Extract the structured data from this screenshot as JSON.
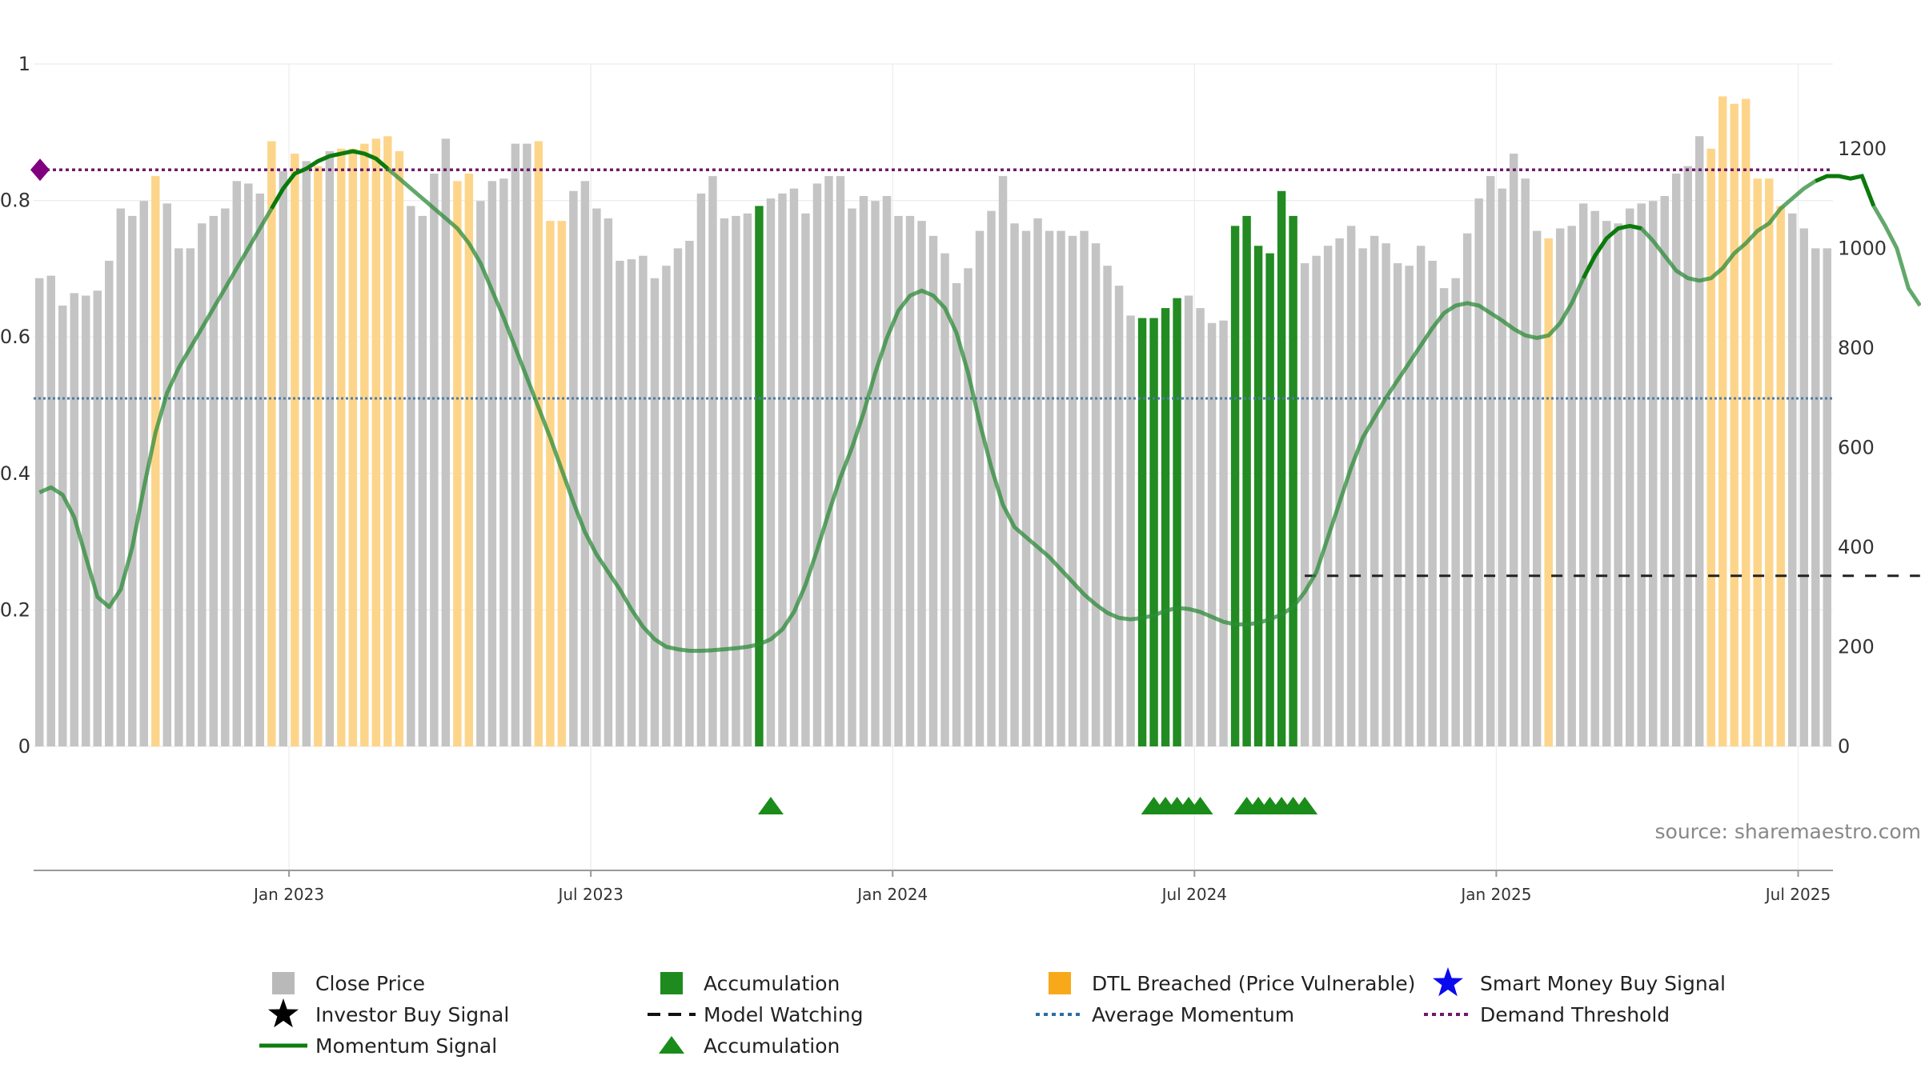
{
  "chart_data": {
    "type": "bar",
    "source": "source: sharemaestro.com",
    "x_ticks": [
      {
        "label": "Jan 2023",
        "week": 22
      },
      {
        "label": "Jul 2023",
        "week": 48
      },
      {
        "label": "Jan 2024",
        "week": 74
      },
      {
        "label": "Jul 2024",
        "week": 100
      },
      {
        "label": "Jan 2025",
        "week": 126
      },
      {
        "label": "Jul 2025",
        "week": 152
      }
    ],
    "left_axis": {
      "ylim": [
        0,
        1
      ],
      "ticks": [
        "0",
        "0.2",
        "0.4",
        "0.6",
        "0.8",
        "1"
      ],
      "tick_values": [
        0,
        0.2,
        0.4,
        0.6,
        0.8,
        1
      ]
    },
    "right_axis": {
      "ylim": [
        0,
        1370
      ],
      "ticks": [
        "0",
        "200",
        "400",
        "600",
        "800",
        "1000",
        "1200"
      ],
      "tick_values": [
        0,
        200,
        400,
        600,
        800,
        1000,
        1200
      ]
    },
    "close_price": [
      940,
      945,
      885,
      910,
      905,
      915,
      975,
      1080,
      1065,
      1095,
      1145,
      1090,
      1000,
      1000,
      1050,
      1065,
      1080,
      1135,
      1130,
      1110,
      1215,
      1155,
      1190,
      1175,
      1165,
      1195,
      1200,
      1200,
      1210,
      1220,
      1225,
      1195,
      1085,
      1065,
      1150,
      1220,
      1135,
      1150,
      1095,
      1135,
      1140,
      1210,
      1210,
      1215,
      1055,
      1055,
      1115,
      1135,
      1080,
      1060,
      975,
      978,
      985,
      940,
      965,
      1000,
      1015,
      1110,
      1145,
      1060,
      1065,
      1070,
      1085,
      1100,
      1110,
      1120,
      1070,
      1130,
      1145,
      1145,
      1080,
      1105,
      1095,
      1105,
      1065,
      1065,
      1055,
      1025,
      990,
      930,
      960,
      1035,
      1075,
      1145,
      1050,
      1035,
      1060,
      1035,
      1035,
      1025,
      1035,
      1010,
      965,
      925,
      865,
      860,
      860,
      880,
      900,
      905,
      880,
      850,
      855,
      1045,
      1065,
      1005,
      990,
      1115,
      1065,
      970,
      985,
      1005,
      1020,
      1045,
      1000,
      1025,
      1010,
      970,
      965,
      1005,
      975,
      920,
      940,
      1030,
      1100,
      1145,
      1120,
      1190,
      1140,
      1035,
      1020,
      1040,
      1045,
      1090,
      1075,
      1055,
      1050,
      1080,
      1090,
      1095,
      1105,
      1150,
      1165,
      1225,
      1200,
      1305,
      1290,
      1300,
      1140,
      1140,
      1085,
      1070,
      1040,
      1000,
      1000
    ],
    "accumulation_bars": [
      62,
      95,
      96,
      97,
      98,
      103,
      104,
      105,
      106,
      107,
      108
    ],
    "dtl_breached_bars": [
      10,
      20,
      22,
      24,
      26,
      27,
      28,
      29,
      30,
      31,
      36,
      37,
      43,
      44,
      45,
      130,
      144,
      145,
      146,
      147,
      148,
      149,
      150
    ],
    "momentum_signal": [
      [
        0,
        0.51
      ],
      [
        1,
        0.52
      ],
      [
        2,
        0.505
      ],
      [
        3,
        0.46
      ],
      [
        4,
        0.38
      ],
      [
        5,
        0.3
      ],
      [
        6,
        0.28
      ],
      [
        7,
        0.315
      ],
      [
        8,
        0.4
      ],
      [
        9,
        0.52
      ],
      [
        10,
        0.63
      ],
      [
        11,
        0.71
      ],
      [
        12,
        0.76
      ],
      [
        13,
        0.8
      ],
      [
        14,
        0.84
      ],
      [
        15,
        0.88
      ],
      [
        16,
        0.92
      ],
      [
        17,
        0.96
      ],
      [
        18,
        1.0
      ],
      [
        19,
        1.04
      ],
      [
        20,
        1.08
      ],
      [
        21,
        1.12
      ],
      [
        22,
        1.15
      ],
      [
        23,
        1.16
      ],
      [
        24,
        1.175
      ],
      [
        25,
        1.185
      ],
      [
        26,
        1.19
      ],
      [
        27,
        1.195
      ],
      [
        28,
        1.19
      ],
      [
        29,
        1.18
      ],
      [
        30,
        1.16
      ],
      [
        31,
        1.14
      ],
      [
        32,
        1.12
      ],
      [
        33,
        1.1
      ],
      [
        34,
        1.08
      ],
      [
        35,
        1.06
      ],
      [
        36,
        1.04
      ],
      [
        37,
        1.01
      ],
      [
        38,
        0.97
      ],
      [
        39,
        0.915
      ],
      [
        40,
        0.86
      ],
      [
        41,
        0.8
      ],
      [
        42,
        0.74
      ],
      [
        43,
        0.68
      ],
      [
        44,
        0.62
      ],
      [
        45,
        0.555
      ],
      [
        46,
        0.49
      ],
      [
        47,
        0.43
      ],
      [
        48,
        0.385
      ],
      [
        49,
        0.35
      ],
      [
        50,
        0.315
      ],
      [
        51,
        0.275
      ],
      [
        52,
        0.24
      ],
      [
        53,
        0.215
      ],
      [
        54,
        0.2
      ],
      [
        55,
        0.195
      ],
      [
        56,
        0.192
      ],
      [
        57,
        0.192
      ],
      [
        58,
        0.193
      ],
      [
        59,
        0.195
      ],
      [
        60,
        0.197
      ],
      [
        61,
        0.2
      ],
      [
        62,
        0.205
      ],
      [
        63,
        0.215
      ],
      [
        64,
        0.235
      ],
      [
        65,
        0.27
      ],
      [
        66,
        0.325
      ],
      [
        67,
        0.395
      ],
      [
        68,
        0.47
      ],
      [
        69,
        0.54
      ],
      [
        70,
        0.6
      ],
      [
        71,
        0.67
      ],
      [
        72,
        0.75
      ],
      [
        73,
        0.82
      ],
      [
        74,
        0.875
      ],
      [
        75,
        0.905
      ],
      [
        76,
        0.915
      ],
      [
        77,
        0.905
      ],
      [
        78,
        0.88
      ],
      [
        79,
        0.83
      ],
      [
        80,
        0.75
      ],
      [
        81,
        0.65
      ],
      [
        82,
        0.56
      ],
      [
        83,
        0.485
      ],
      [
        84,
        0.44
      ],
      [
        85,
        0.42
      ],
      [
        86,
        0.4
      ],
      [
        87,
        0.38
      ],
      [
        88,
        0.355
      ],
      [
        89,
        0.33
      ],
      [
        90,
        0.305
      ],
      [
        91,
        0.285
      ],
      [
        92,
        0.268
      ],
      [
        93,
        0.258
      ],
      [
        94,
        0.255
      ],
      [
        95,
        0.258
      ],
      [
        96,
        0.263
      ],
      [
        97,
        0.272
      ],
      [
        98,
        0.278
      ],
      [
        99,
        0.276
      ],
      [
        100,
        0.27
      ],
      [
        101,
        0.26
      ],
      [
        102,
        0.25
      ],
      [
        103,
        0.245
      ],
      [
        104,
        0.245
      ],
      [
        105,
        0.248
      ],
      [
        106,
        0.255
      ],
      [
        107,
        0.265
      ],
      [
        108,
        0.28
      ],
      [
        109,
        0.31
      ],
      [
        110,
        0.35
      ],
      [
        111,
        0.42
      ],
      [
        112,
        0.49
      ],
      [
        113,
        0.56
      ],
      [
        114,
        0.62
      ],
      [
        115,
        0.66
      ],
      [
        116,
        0.7
      ],
      [
        117,
        0.735
      ],
      [
        118,
        0.77
      ],
      [
        119,
        0.805
      ],
      [
        120,
        0.84
      ],
      [
        121,
        0.87
      ],
      [
        122,
        0.885
      ],
      [
        123,
        0.89
      ],
      [
        124,
        0.885
      ],
      [
        125,
        0.87
      ],
      [
        126,
        0.855
      ],
      [
        127,
        0.838
      ],
      [
        128,
        0.825
      ],
      [
        129,
        0.82
      ],
      [
        130,
        0.825
      ],
      [
        131,
        0.85
      ],
      [
        132,
        0.89
      ],
      [
        133,
        0.94
      ],
      [
        134,
        0.985
      ],
      [
        135,
        1.02
      ],
      [
        136,
        1.04
      ],
      [
        137,
        1.045
      ],
      [
        138,
        1.04
      ],
      [
        139,
        1.015
      ],
      [
        140,
        0.985
      ],
      [
        141,
        0.955
      ],
      [
        142,
        0.94
      ],
      [
        143,
        0.935
      ],
      [
        144,
        0.94
      ],
      [
        145,
        0.96
      ],
      [
        146,
        0.99
      ],
      [
        147,
        1.01
      ],
      [
        148,
        1.035
      ],
      [
        149,
        1.05
      ],
      [
        150,
        1.08
      ],
      [
        151,
        1.1
      ],
      [
        152,
        1.12
      ],
      [
        153,
        1.135
      ],
      [
        154,
        1.145
      ],
      [
        155,
        1.145
      ],
      [
        156,
        1.14
      ],
      [
        157,
        1.145
      ],
      [
        158,
        1.085
      ],
      [
        159,
        1.045
      ],
      [
        160,
        1.0
      ],
      [
        161,
        0.92
      ],
      [
        162,
        0.885
      ]
    ],
    "momentum_bold_segments": [
      [
        20,
        30
      ],
      [
        133,
        138
      ],
      [
        153,
        158
      ]
    ],
    "momentum_scale_note": "momentum_signal values are in left-axis units scaled to a 0-1.37 range; rendered against right axis proportion",
    "average_momentum": 0.51,
    "demand_threshold": 0.845,
    "model_watching": {
      "start_week": 109,
      "end_week": 163,
      "value": 0.25
    },
    "accumulation_markers": [
      63,
      96,
      97,
      98,
      99,
      100,
      104,
      105,
      106,
      107,
      108,
      109
    ],
    "demand_marker": {
      "week": 0,
      "value": 0.845
    },
    "colors": {
      "close_price": "#c4c4c4",
      "accumulation": "#228b22",
      "dtl_breached": "#fdd58a",
      "momentum": "#1f8b1f",
      "average_momentum": "#4f7aa3",
      "demand_threshold": "#6e1a6e",
      "model_watching": "#222222",
      "triangle": "#1a8c1a",
      "smart_money": "#0a0aee",
      "investor_buy": "#000000",
      "diamond": "#800080"
    },
    "legend": [
      {
        "label": "Close Price",
        "icon": "square-icon",
        "color": "#b9b9b9"
      },
      {
        "label": "Accumulation",
        "icon": "square-icon",
        "color": "#1f8b1f"
      },
      {
        "label": "DTL Breached (Price Vulnerable)",
        "icon": "square-icon",
        "color": "#f8a91a"
      },
      {
        "label": "Smart Money Buy Signal",
        "icon": "star-icon",
        "color": "#0a0aee"
      },
      {
        "label": "Investor Buy Signal",
        "icon": "star-icon",
        "color": "#000000"
      },
      {
        "label": "Model Watching",
        "icon": "dashed-line-icon",
        "color": "#111111"
      },
      {
        "label": "Average Momentum",
        "icon": "dotted-line-icon",
        "color": "#2b6fa6"
      },
      {
        "label": "Demand Threshold",
        "icon": "dotted-line-icon",
        "color": "#6e1a6e"
      },
      {
        "label": "Momentum Signal",
        "icon": "solid-line-icon",
        "color": "#0e7d0e"
      },
      {
        "label": "Model Watching",
        "icon": "none",
        "color": "#111111",
        "hidden_duplicate": true
      },
      {
        "label": "Accumulation",
        "icon": "triangle-icon",
        "color": "#1a8c1a"
      }
    ]
  }
}
